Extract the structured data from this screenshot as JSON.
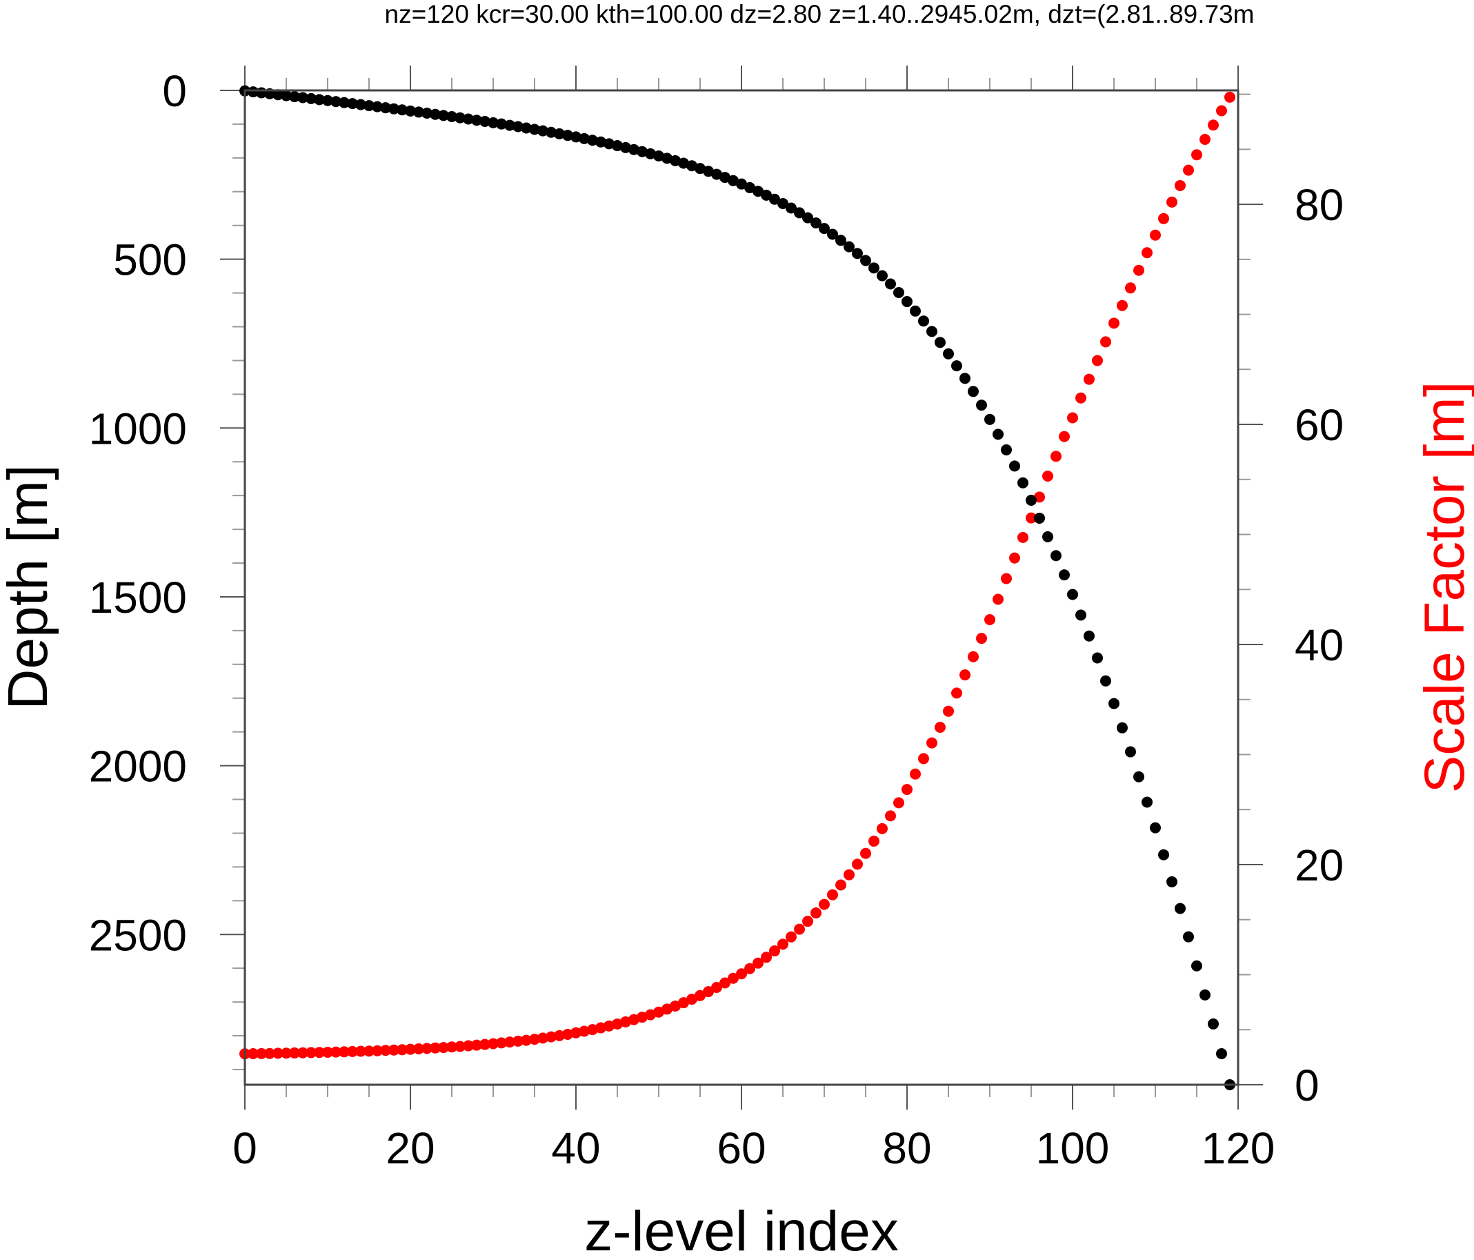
{
  "title": "nz=120 kcr=30.00 kth=100.00 dz=2.80 z=1.40..2945.02m,  dzt=(2.81..89.73m",
  "colors": {
    "depth_series": "#000000",
    "scale_factor_series": "#ff0000",
    "axis": "#4a4a4a",
    "background": "#ffffff"
  },
  "chart_data": {
    "type": "scatter",
    "title": "nz=120 kcr=30.00 kth=100.00 dz=2.80 z=1.40..2945.02m,  dzt=(2.81..89.73m",
    "xlabel": "z-level index",
    "ylabel_left": "Depth [m]",
    "ylabel_right": "Scale Factor [m]",
    "xlim": [
      0,
      120
    ],
    "ylim_left": [
      2945.02,
      0
    ],
    "ylim_right": [
      0,
      90.35
    ],
    "x_ticks": [
      0,
      20,
      40,
      60,
      80,
      100,
      120
    ],
    "x_minor_step": 5,
    "y_left_ticks": [
      0,
      500,
      1000,
      1500,
      2000,
      2500
    ],
    "y_left_minor_step": 100,
    "y_right_ticks": [
      0,
      20,
      40,
      60,
      80
    ],
    "y_right_minor_step": 5,
    "grid": false,
    "legend": "none",
    "x": [
      0,
      1,
      2,
      3,
      4,
      5,
      6,
      7,
      8,
      9,
      10,
      11,
      12,
      13,
      14,
      15,
      16,
      17,
      18,
      19,
      20,
      21,
      22,
      23,
      24,
      25,
      26,
      27,
      28,
      29,
      30,
      31,
      32,
      33,
      34,
      35,
      36,
      37,
      38,
      39,
      40,
      41,
      42,
      43,
      44,
      45,
      46,
      47,
      48,
      49,
      50,
      51,
      52,
      53,
      54,
      55,
      56,
      57,
      58,
      59,
      60,
      61,
      62,
      63,
      64,
      65,
      66,
      67,
      68,
      69,
      70,
      71,
      72,
      73,
      74,
      75,
      76,
      77,
      78,
      79,
      80,
      81,
      82,
      83,
      84,
      85,
      86,
      87,
      88,
      89,
      90,
      91,
      92,
      93,
      94,
      95,
      96,
      97,
      98,
      99,
      100,
      101,
      102,
      103,
      104,
      105,
      106,
      107,
      108,
      109,
      110,
      111,
      112,
      113,
      114,
      115,
      116,
      117,
      118,
      119
    ],
    "series": [
      {
        "name": "Depth",
        "axis": "left",
        "color": "#000000",
        "values": [
          1.4,
          4.22,
          7.05,
          9.88,
          12.73,
          15.59,
          18.47,
          21.37,
          24.27,
          27.21,
          30.17,
          33.12,
          36.11,
          39.13,
          42.17,
          45.23,
          48.32,
          51.44,
          54.59,
          57.78,
          61.0,
          64.2,
          67.5,
          70.9,
          74.3,
          77.7,
          81.2,
          84.8,
          88.4,
          92.0,
          95.7,
          99.5,
          103.4,
          107.3,
          111.4,
          115.5,
          119.8,
          124.2,
          128.6,
          133.2,
          137.8,
          142.7,
          147.6,
          152.8,
          158.1,
          163.6,
          169.3,
          175.2,
          181.3,
          187.7,
          194.2,
          201.0,
          208.1,
          215.5,
          223.2,
          231.3,
          239.7,
          248.5,
          257.7,
          267.3,
          277.3,
          288.0,
          298.8,
          310.3,
          322.4,
          335.1,
          348.4,
          362.5,
          377.2,
          392.7,
          409.0,
          426.1,
          444.1,
          463.1,
          483.0,
          503.9,
          525.9,
          549.0,
          573.3,
          598.8,
          625.5,
          653.6,
          683.0,
          714.0,
          746.4,
          780.3,
          815.7,
          852.9,
          891.7,
          932.2,
          974.5,
          1018.6,
          1064.6,
          1112.5,
          1162.3,
          1214,
          1267,
          1322,
          1378,
          1435,
          1493,
          1554,
          1616,
          1681,
          1749,
          1816,
          1888,
          1959,
          2033,
          2108,
          2184,
          2264,
          2344,
          2423,
          2507,
          2593,
          2679,
          2765,
          2853,
          2945.02
        ]
      },
      {
        "name": "Scale Factor",
        "axis": "right",
        "color": "#ff0000",
        "values": [
          2.81,
          2.82,
          2.83,
          2.84,
          2.86,
          2.87,
          2.89,
          2.9,
          2.92,
          2.93,
          2.95,
          2.97,
          2.99,
          3.02,
          3.04,
          3.06,
          3.09,
          3.12,
          3.15,
          3.18,
          3.22,
          3.26,
          3.3,
          3.34,
          3.38,
          3.43,
          3.48,
          3.54,
          3.6,
          3.66,
          3.73,
          3.8,
          3.88,
          3.96,
          4.04,
          4.13,
          4.24,
          4.35,
          4.46,
          4.58,
          4.72,
          4.86,
          5.01,
          5.17,
          5.34,
          5.52,
          5.71,
          5.92,
          6.14,
          6.36,
          6.6,
          6.87,
          7.15,
          7.45,
          7.77,
          8.1,
          8.46,
          8.84,
          9.25,
          9.67,
          10.08,
          10.55,
          11.05,
          11.58,
          12.16,
          12.77,
          13.43,
          14.13,
          14.85,
          15.61,
          16.39,
          17.26,
          18.15,
          19.08,
          20.04,
          21.02,
          22.13,
          23.27,
          24.43,
          25.62,
          26.83,
          28.23,
          29.63,
          31.06,
          32.48,
          33.94,
          35.59,
          37.24,
          38.89,
          40.56,
          42.26,
          44.11,
          45.99,
          47.86,
          49.73,
          51.5,
          53.4,
          55.3,
          57.1,
          58.9,
          60.6,
          62.4,
          64.1,
          65.8,
          67.5,
          69.2,
          70.8,
          72.4,
          74.0,
          75.6,
          77.2,
          78.7,
          80.2,
          81.7,
          83.1,
          84.5,
          85.9,
          87.2,
          88.5,
          89.73
        ]
      }
    ]
  },
  "axes": {
    "x_tick_labels": [
      "0",
      "20",
      "40",
      "60",
      "80",
      "100",
      "120"
    ],
    "y_left_tick_labels": [
      "0",
      "500",
      "1000",
      "1500",
      "2000",
      "2500"
    ],
    "y_right_tick_labels": [
      "0",
      "20",
      "40",
      "60",
      "80"
    ],
    "x_title": "z-level index",
    "y_left_title": "Depth [m]",
    "y_right_title": "Scale Factor [m]"
  }
}
